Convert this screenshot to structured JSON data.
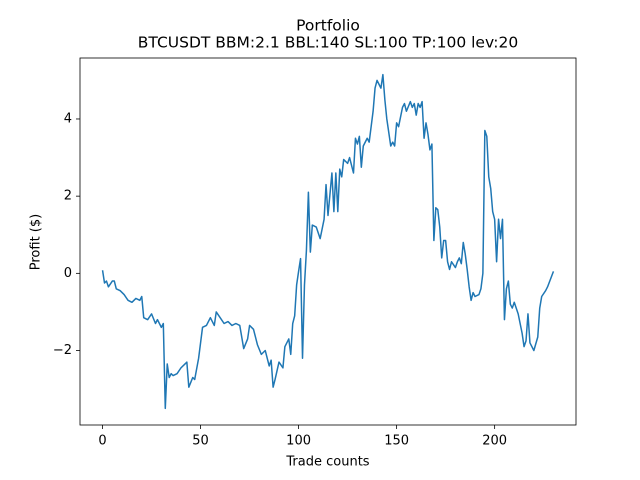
{
  "chart_data": {
    "type": "line",
    "title": "Portfolio",
    "subtitle": "BTCUSDT BBM:2.1 BBL:140 SL:100 TP:100 lev:20",
    "x_label": "Trade counts",
    "y_label": "Profit ($)",
    "xlim": [
      -11.5,
      241.5
    ],
    "ylim": [
      -3.93,
      5.58
    ],
    "xticks": [
      0,
      50,
      100,
      150,
      200
    ],
    "yticks": [
      {
        "value": -2,
        "label": "−2"
      },
      0,
      2,
      4
    ],
    "grid": false,
    "series": [
      {
        "color": "#1f77b4",
        "x": [
          0,
          1,
          2,
          3,
          5,
          6,
          7,
          9,
          11,
          13,
          15,
          17,
          19,
          20,
          21,
          23,
          25,
          27,
          28,
          30,
          31,
          32,
          33,
          34,
          35,
          36,
          38,
          40,
          42,
          43,
          44,
          46,
          47,
          49,
          51,
          53,
          55,
          57,
          58,
          60,
          62,
          64,
          66,
          68,
          70,
          72,
          74,
          75,
          77,
          79,
          81,
          83,
          85,
          86,
          87,
          88,
          90,
          92,
          93,
          95,
          96,
          97,
          98,
          99,
          100,
          101,
          102,
          103,
          104,
          105,
          106,
          107,
          109,
          111,
          113,
          114,
          115,
          117,
          118,
          119,
          120,
          121,
          122,
          123,
          125,
          126,
          128,
          129,
          130,
          131,
          132,
          133,
          135,
          136,
          138,
          139,
          140,
          141,
          142,
          143,
          144,
          145,
          147,
          148,
          149,
          150,
          151,
          153,
          154,
          155,
          157,
          158,
          159,
          160,
          161,
          162,
          163,
          164,
          165,
          166,
          167,
          168,
          169,
          170,
          171,
          172,
          173,
          174,
          175,
          176,
          177,
          178,
          180,
          181,
          182,
          183,
          184,
          185,
          186,
          187,
          188,
          189,
          190,
          192,
          193,
          194,
          195,
          196,
          197,
          198,
          199,
          200,
          201,
          202,
          203,
          204,
          205,
          206,
          207,
          208,
          209,
          210,
          212,
          214,
          215,
          216,
          217,
          218,
          220,
          222,
          223,
          224,
          226,
          227,
          230
        ],
        "values": [
          0.08,
          -0.25,
          -0.2,
          -0.35,
          -0.2,
          -0.2,
          -0.4,
          -0.45,
          -0.55,
          -0.7,
          -0.75,
          -0.65,
          -0.7,
          -0.6,
          -1.15,
          -1.2,
          -1.05,
          -1.3,
          -1.2,
          -1.4,
          -1.3,
          -3.5,
          -2.35,
          -2.7,
          -2.6,
          -2.65,
          -2.6,
          -2.45,
          -2.35,
          -2.3,
          -2.95,
          -2.7,
          -2.75,
          -2.2,
          -1.4,
          -1.35,
          -1.15,
          -1.35,
          -1.0,
          -1.15,
          -1.3,
          -1.25,
          -1.35,
          -1.3,
          -1.35,
          -1.95,
          -1.7,
          -1.35,
          -1.45,
          -1.85,
          -2.1,
          -2.0,
          -2.4,
          -2.25,
          -2.95,
          -2.75,
          -2.3,
          -2.45,
          -1.9,
          -1.7,
          -2.1,
          -1.3,
          -1.1,
          -0.3,
          0.05,
          0.38,
          -2.2,
          -0.3,
          0.6,
          2.1,
          0.55,
          1.25,
          1.2,
          0.9,
          1.4,
          2.3,
          1.5,
          2.6,
          1.6,
          2.6,
          1.6,
          2.7,
          2.5,
          2.95,
          2.85,
          3.0,
          2.6,
          3.5,
          3.35,
          3.55,
          2.75,
          3.3,
          3.5,
          3.4,
          4.2,
          4.8,
          5.0,
          4.9,
          4.8,
          5.15,
          4.5,
          4.0,
          3.3,
          3.4,
          3.3,
          3.9,
          3.8,
          4.3,
          4.4,
          4.2,
          4.45,
          4.3,
          4.4,
          4.1,
          4.4,
          4.3,
          4.45,
          3.5,
          3.9,
          3.6,
          3.2,
          3.35,
          0.85,
          1.7,
          1.65,
          1.2,
          0.4,
          0.85,
          0.85,
          0.3,
          0.1,
          0.3,
          0.15,
          0.3,
          0.4,
          0.25,
          0.8,
          0.5,
          0.1,
          -0.35,
          -0.7,
          -0.5,
          -0.6,
          -0.55,
          -0.4,
          0.0,
          3.7,
          3.55,
          2.5,
          2.2,
          1.6,
          1.4,
          0.3,
          1.4,
          0.9,
          1.4,
          -1.2,
          -0.4,
          -0.2,
          -0.8,
          -0.9,
          -0.75,
          -1.05,
          -1.55,
          -1.9,
          -1.75,
          -1.05,
          -1.8,
          -2.0,
          -1.65,
          -0.9,
          -0.6,
          -0.45,
          -0.35,
          0.05
        ]
      }
    ]
  }
}
